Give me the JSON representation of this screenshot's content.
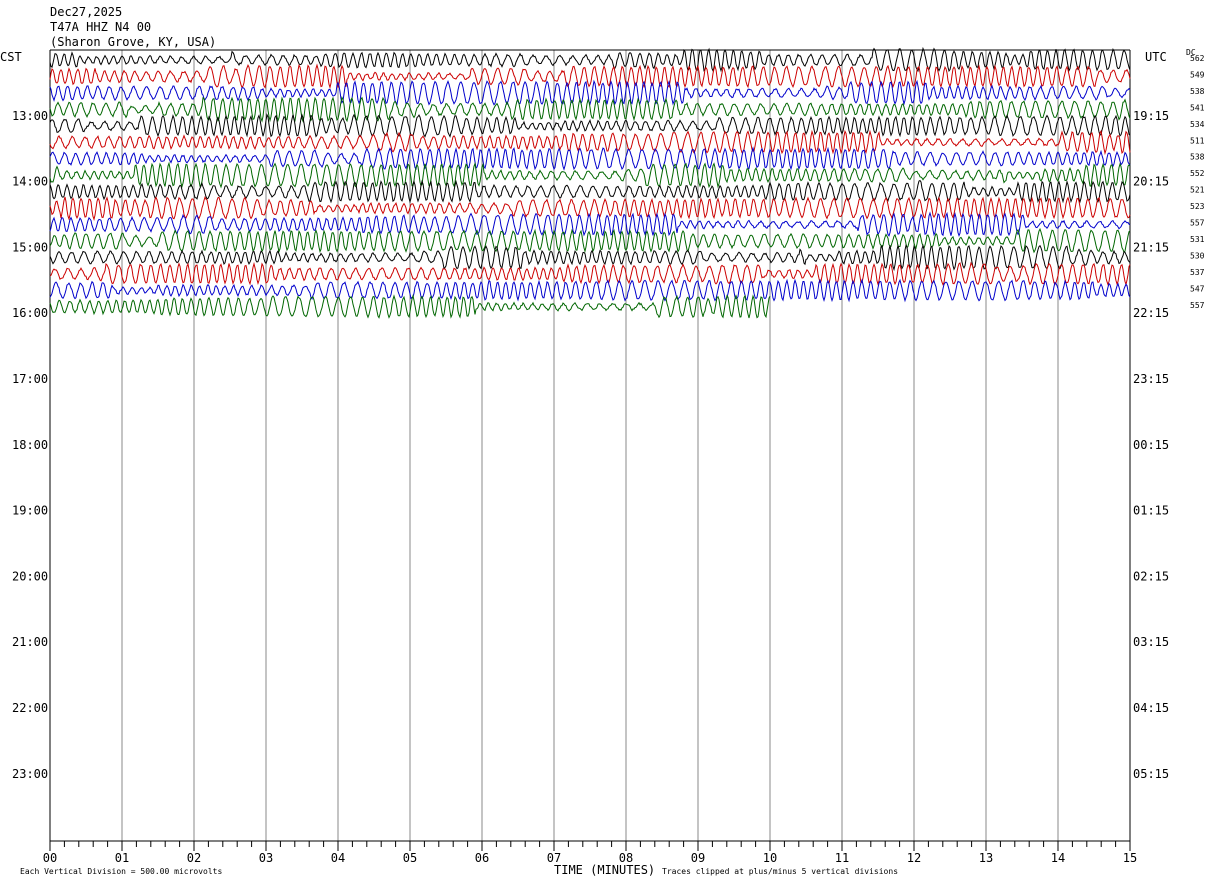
{
  "header": {
    "date": "Dec27,2025",
    "station": "T47A HHZ N4 00",
    "location": "(Sharon Grove, KY, USA)"
  },
  "left_zone_label": "CST",
  "right_zone_label": "UTC",
  "dc_label": "DC",
  "footer": {
    "xlabel": "TIME (MINUTES)",
    "scale_note": "Each Vertical Division =  500.00 microvolts",
    "clip_note": "Traces clipped at plus/minus 5 vertical divisions"
  },
  "chart_data": {
    "type": "line",
    "title": "",
    "xlabel": "TIME (MINUTES)",
    "xlim": [
      0,
      15
    ],
    "x_ticks": [
      "00",
      "01",
      "02",
      "03",
      "04",
      "05",
      "06",
      "07",
      "08",
      "09",
      "10",
      "11",
      "12",
      "13",
      "14",
      "15"
    ],
    "left_time_labels": [
      "13:00",
      "14:00",
      "15:00",
      "16:00",
      "17:00",
      "18:00",
      "19:00",
      "20:00",
      "21:00",
      "22:00",
      "23:00"
    ],
    "right_time_labels": [
      "19:15",
      "20:15",
      "21:15",
      "22:15",
      "23:15",
      "00:15",
      "01:15",
      "02:15",
      "03:15",
      "04:15",
      "05:15"
    ],
    "trace_colors": [
      "#000000",
      "#cc0000",
      "#0000cc",
      "#006600"
    ],
    "trace_dc_offsets": [
      562,
      549,
      538,
      541,
      534,
      511,
      538,
      552,
      521,
      523,
      557,
      531,
      530,
      537,
      547,
      557
    ],
    "grid": true
  }
}
